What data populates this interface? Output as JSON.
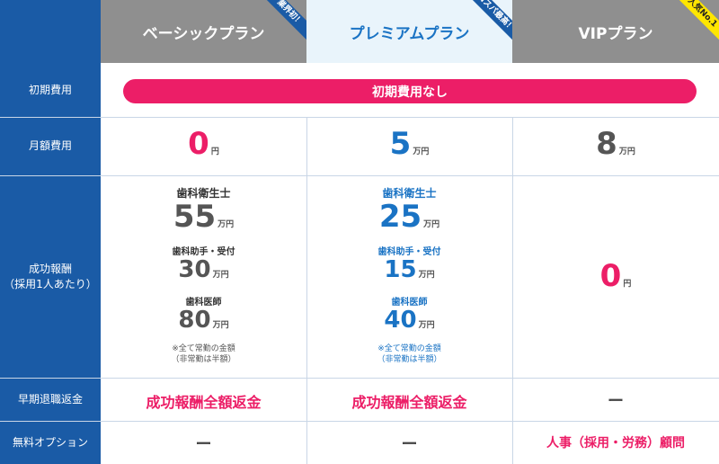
{
  "plans": {
    "basic": {
      "name": "ベーシックプラン",
      "badge": "業界初！"
    },
    "premium": {
      "name": "プレミアムプラン",
      "badge": "コスパ最高！"
    },
    "vip": {
      "name": "VIPプラン",
      "badge": "人気No.1"
    }
  },
  "rows": {
    "initial_fee": {
      "label": "初期費用",
      "banner": "初期費用なし"
    },
    "monthly_fee": {
      "label": "月額費用",
      "basic": {
        "value": "0",
        "unit": "円"
      },
      "premium": {
        "value": "5",
        "unit": "万円"
      },
      "vip": {
        "value": "8",
        "unit": "万円"
      }
    },
    "success_fee": {
      "label_line1": "成功報酬",
      "label_line2": "（採用1人あたり）",
      "basic": {
        "hygienist_label": "歯科衛生士",
        "hygienist_value": "55",
        "hygienist_unit": "万円",
        "assistant_label": "歯科助手・受付",
        "assistant_value": "30",
        "assistant_unit": "万円",
        "dentist_label": "歯科医師",
        "dentist_value": "80",
        "dentist_unit": "万円",
        "note_line1": "※全て常勤の金額",
        "note_line2": "（非常勤は半額）"
      },
      "premium": {
        "hygienist_label": "歯科衛生士",
        "hygienist_value": "25",
        "hygienist_unit": "万円",
        "assistant_label": "歯科助手・受付",
        "assistant_value": "15",
        "assistant_unit": "万円",
        "dentist_label": "歯科医師",
        "dentist_value": "40",
        "dentist_unit": "万円",
        "note_line1": "※全て常勤の金額",
        "note_line2": "（非常勤は半額）"
      },
      "vip": {
        "value": "0",
        "unit": "円"
      }
    },
    "refund": {
      "label": "早期退職返金",
      "basic": "成功報酬全額返金",
      "premium": "成功報酬全額返金",
      "vip": "ー"
    },
    "options": {
      "label": "無料オプション",
      "basic": "ー",
      "premium": "ー",
      "vip": "人事（採用・労務）顧問"
    }
  },
  "colors": {
    "header_blue": "#1a5ba6",
    "accent_pink": "#ec1e67",
    "value_blue": "#1a73c4",
    "header_gray": "#8f8f8f",
    "premium_bg": "#e9f4fb",
    "ribbon_yellow": "#ffe600"
  }
}
